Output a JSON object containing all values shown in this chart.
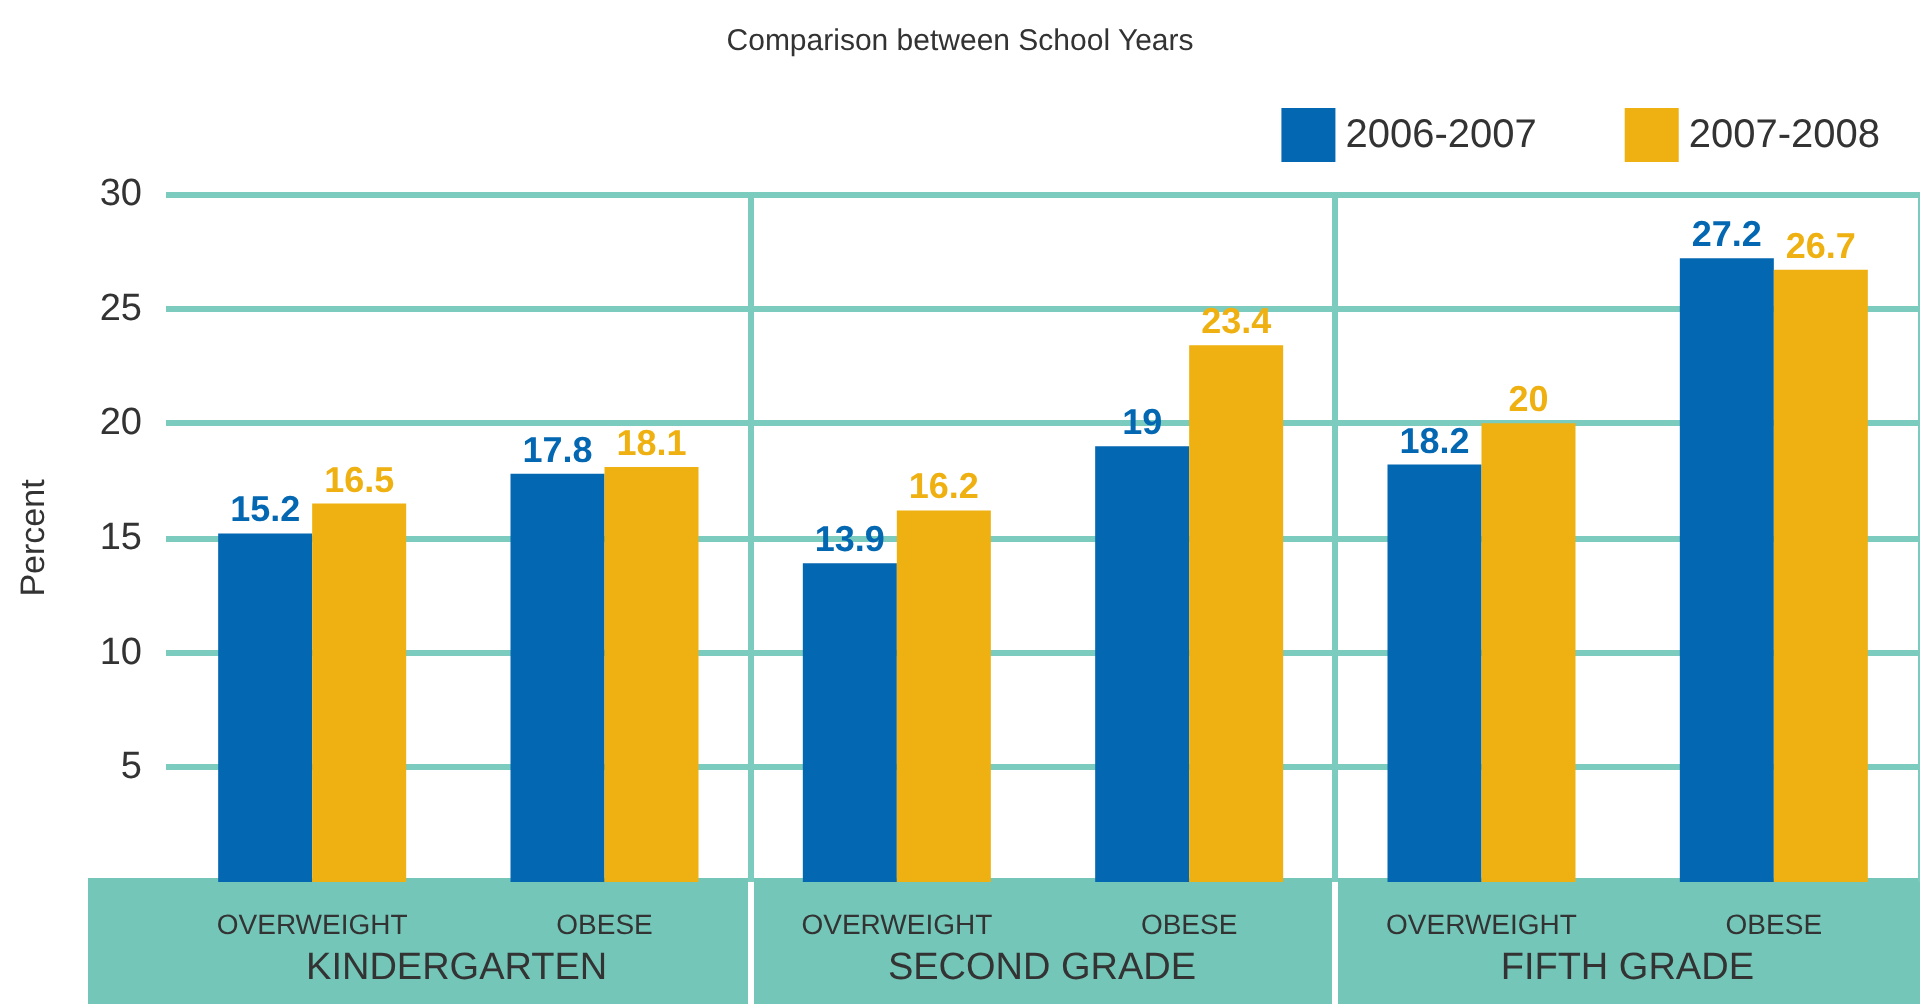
{
  "chart_data": {
    "type": "bar",
    "title": "Comparison between School Years",
    "ylabel": "Percent",
    "categories": [
      "OVERWEIGHT",
      "OBESE",
      "OVERWEIGHT",
      "OBESE",
      "OVERWEIGHT",
      "OBESE"
    ],
    "annotations": [
      "KINDERGARTEN",
      "SECOND GRADE",
      "FIFTH GRADE"
    ],
    "series": [
      {
        "name": "2006-2007",
        "color": "#0467b1",
        "values": [
          15.2,
          17.8,
          13.9,
          19,
          18.2,
          27.2
        ]
      },
      {
        "name": "2007-2008",
        "color": "#efb111",
        "values": [
          16.5,
          18.1,
          16.2,
          23.4,
          20,
          26.7
        ]
      }
    ],
    "ylim": [
      0,
      30
    ],
    "yticks": [
      5,
      10,
      15,
      20,
      25,
      30
    ],
    "grid": "y",
    "legend": "top right",
    "data_labels": true
  }
}
